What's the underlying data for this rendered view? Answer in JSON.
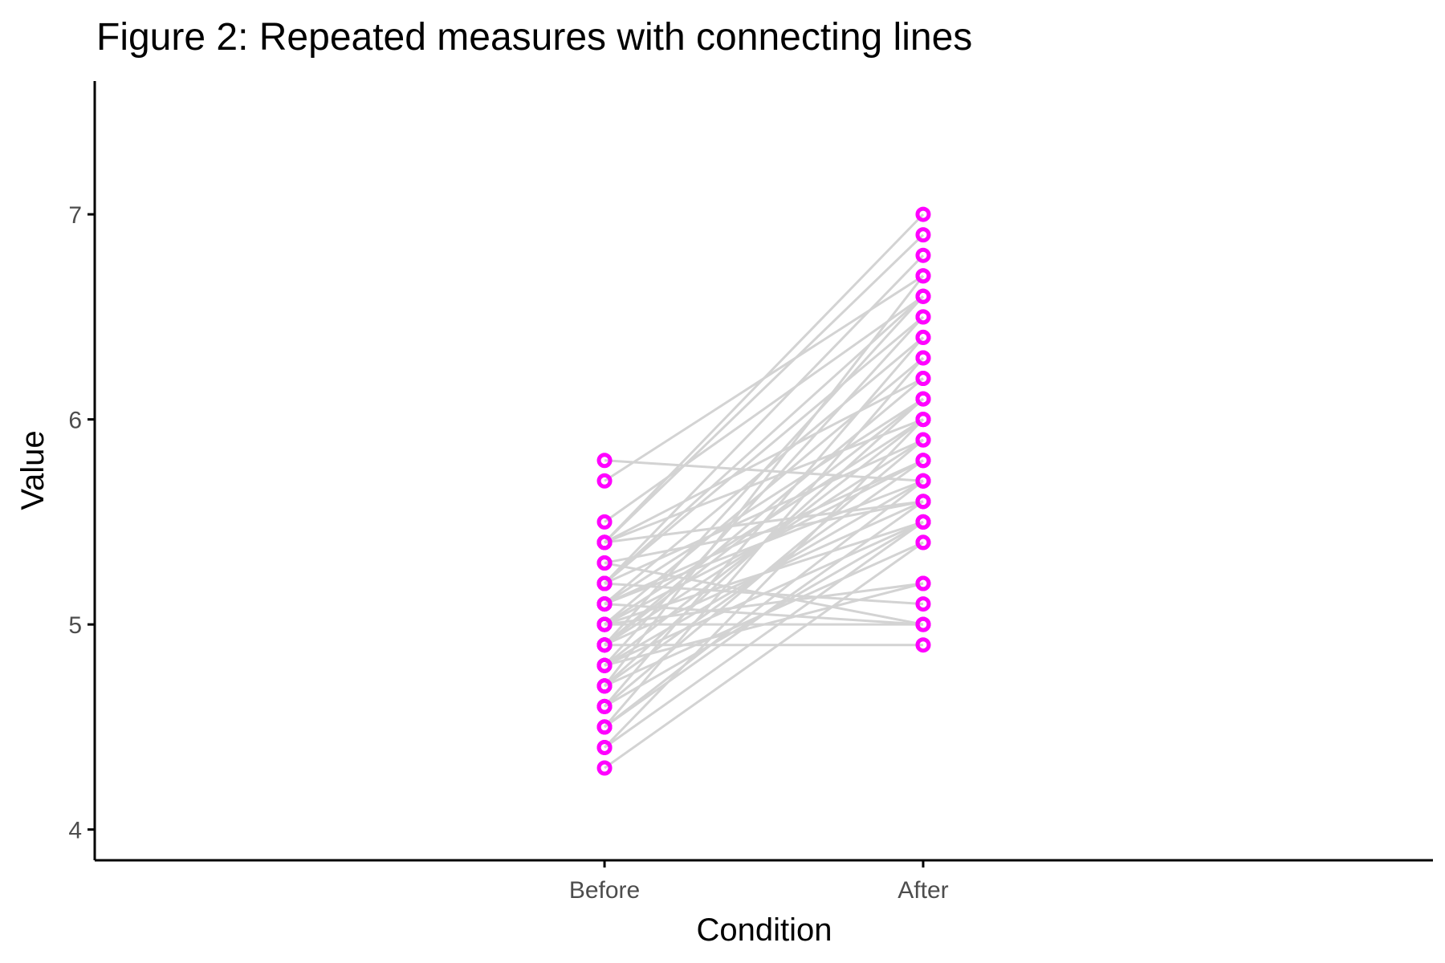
{
  "chart_data": {
    "type": "line",
    "title": "Figure 2: Repeated measures with connecting lines",
    "xlabel": "Condition",
    "ylabel": "Value",
    "categories": [
      "Before",
      "After"
    ],
    "ylim": [
      3.85,
      7.65
    ],
    "yticks": [
      "4",
      "5",
      "6",
      "7"
    ],
    "grid": false,
    "legend": "none",
    "colors": {
      "points": "#ff00ff",
      "lines": "#d3d3d3",
      "axis": "#000000"
    },
    "pairs": [
      [
        5.8,
        5.7
      ],
      [
        5.7,
        6.7
      ],
      [
        5.5,
        6.6
      ],
      [
        5.4,
        7.0
      ],
      [
        5.4,
        6.9
      ],
      [
        5.4,
        6.2
      ],
      [
        5.4,
        6.0
      ],
      [
        5.3,
        5.6
      ],
      [
        5.2,
        6.8
      ],
      [
        5.2,
        6.5
      ],
      [
        5.2,
        5.9
      ],
      [
        5.2,
        5.1
      ],
      [
        5.1,
        6.4
      ],
      [
        5.1,
        6.1
      ],
      [
        5.1,
        5.7
      ],
      [
        5.1,
        5.0
      ],
      [
        5.0,
        6.3
      ],
      [
        5.0,
        6.0
      ],
      [
        5.0,
        5.8
      ],
      [
        5.0,
        5.5
      ],
      [
        5.0,
        5.0
      ],
      [
        4.9,
        6.6
      ],
      [
        4.9,
        6.2
      ],
      [
        4.9,
        5.9
      ],
      [
        4.9,
        5.6
      ],
      [
        4.9,
        4.9
      ],
      [
        4.8,
        6.5
      ],
      [
        4.8,
        6.0
      ],
      [
        4.8,
        5.7
      ],
      [
        4.8,
        5.5
      ],
      [
        4.8,
        5.2
      ],
      [
        4.7,
        6.7
      ],
      [
        4.7,
        6.1
      ],
      [
        4.7,
        5.8
      ],
      [
        4.7,
        5.4
      ],
      [
        4.6,
        6.4
      ],
      [
        4.6,
        5.9
      ],
      [
        4.6,
        5.5
      ],
      [
        4.5,
        6.3
      ],
      [
        4.5,
        5.7
      ],
      [
        4.5,
        5.6
      ],
      [
        4.4,
        6.0
      ],
      [
        4.4,
        5.5
      ],
      [
        4.3,
        5.4
      ],
      [
        5.3,
        5.0
      ],
      [
        5.0,
        5.2
      ],
      [
        4.9,
        6.1
      ],
      [
        5.4,
        5.6
      ],
      [
        5.1,
        5.8
      ],
      [
        5.2,
        6.6
      ]
    ]
  }
}
